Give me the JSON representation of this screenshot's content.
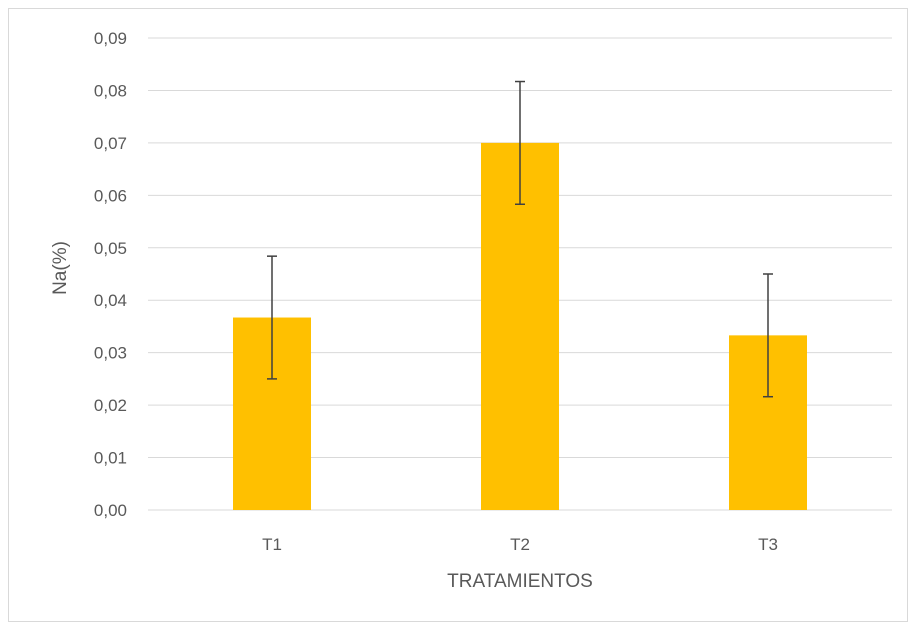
{
  "chart_data": {
    "type": "bar",
    "categories": [
      "T1",
      "T2",
      "T3"
    ],
    "series": [
      {
        "values": [
          0.0367,
          0.07,
          0.0333
        ],
        "error": [
          0.0117,
          0.0117,
          0.0117
        ]
      }
    ],
    "title": "",
    "xlabel": "TRATAMIENTOS",
    "ylabel": "Na(%)",
    "ylim": [
      0,
      0.09
    ],
    "yticks": [
      "0,00",
      "0,01",
      "0,02",
      "0,03",
      "0,04",
      "0,05",
      "0,06",
      "0,07",
      "0,08",
      "0,09"
    ],
    "grid": true,
    "legend": "none",
    "bar_color": "#ffc000",
    "error_bar_color": "#404040",
    "grid_color": "#d9d9d9",
    "text_color": "#595959"
  }
}
